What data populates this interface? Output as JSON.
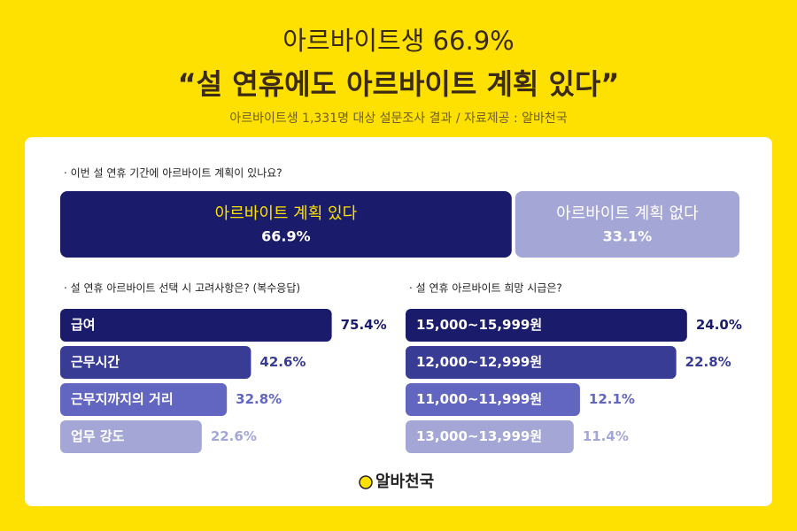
{
  "header": {
    "title1": "아르바이트생 66.9%",
    "title2": "“설 연휴에도 아르바이트 계획 있다”",
    "subtitle": "아르바이트생 1,331명 대상 설문조사 결과 / 자료제공 : 알바천국"
  },
  "chart_data": [
    {
      "type": "stacked-bar",
      "title": "· 이번 설 연휴 기간에 아르바이트 계획이 있나요?",
      "categories": [
        "아르바이트 계획 있다",
        "아르바이트 계획 없다"
      ],
      "values": [
        66.9,
        33.1
      ],
      "value_labels": [
        "66.9%",
        "33.1%"
      ],
      "colors": [
        "#1b1b6b",
        "#a4a7d6"
      ]
    },
    {
      "type": "bar",
      "title": "· 설 연휴 아르바이트 선택 시 고려사항은? (복수응답)",
      "categories": [
        "급여",
        "근무시간",
        "근무지까지의 거리",
        "업무 강도"
      ],
      "values": [
        75.4,
        42.6,
        32.8,
        22.6
      ],
      "value_labels": [
        "75.4%",
        "42.6%",
        "32.8%",
        "22.6%"
      ],
      "colors": [
        "#1b1b6b",
        "#393c95",
        "#6366c0",
        "#a4a7d6"
      ]
    },
    {
      "type": "bar",
      "title": "· 설 연휴 아르바이트 희망 시급은?",
      "categories": [
        "15,000~15,999원",
        "12,000~12,999원",
        "11,000~11,999원",
        "13,000~13,999원"
      ],
      "values": [
        24.0,
        22.8,
        12.1,
        11.4
      ],
      "value_labels": [
        "24.0%",
        "22.8%",
        "12.1%",
        "11.4%"
      ],
      "colors": [
        "#1b1b6b",
        "#393c95",
        "#6366c0",
        "#a4a7d6"
      ]
    }
  ],
  "footer": {
    "logo": "알바천국"
  }
}
